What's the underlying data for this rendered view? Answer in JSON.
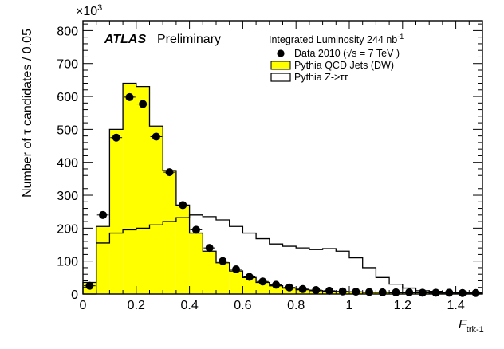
{
  "chart_data": {
    "type": "histogram",
    "title": "",
    "experiment_label": "ATLAS",
    "status_label": "Preliminary",
    "luminosity_label": "Integrated Luminosity 244 nb",
    "luminosity_superscript": "-1",
    "y_multiplier": "×10",
    "y_multiplier_exponent": "3",
    "xlabel": "F",
    "xlabel_subscript": "trk-1",
    "ylabel": "Number of τ candidates / 0.05",
    "xlim": [
      0,
      1.5
    ],
    "ylim": [
      0,
      830
    ],
    "x_ticks": [
      0,
      0.2,
      0.4,
      0.6,
      0.8,
      1,
      1.2,
      1.4
    ],
    "x_tick_labels": [
      "0",
      "0.2",
      "0.4",
      "0.6",
      "0.8",
      "1",
      "1.2",
      "1.4"
    ],
    "y_ticks": [
      0,
      100,
      200,
      300,
      400,
      500,
      600,
      700,
      800
    ],
    "y_tick_labels": [
      "0",
      "100",
      "200",
      "300",
      "400",
      "500",
      "600",
      "700",
      "800"
    ],
    "bin_edges": [
      0,
      0.05,
      0.1,
      0.15,
      0.2,
      0.25,
      0.3,
      0.35,
      0.4,
      0.45,
      0.5,
      0.55,
      0.6,
      0.65,
      0.7,
      0.75,
      0.8,
      0.85,
      0.9,
      0.95,
      1.0,
      1.05,
      1.1,
      1.15,
      1.2,
      1.25,
      1.3,
      1.35,
      1.4,
      1.45,
      1.5
    ],
    "series": [
      {
        "name": "Data 2010 (√s = 7 TeV )",
        "style": "markers",
        "color": "#000000",
        "values": [
          25,
          240,
          475,
          598,
          577,
          478,
          370,
          270,
          195,
          140,
          100,
          75,
          52,
          38,
          28,
          20,
          15,
          12,
          10,
          8,
          7,
          6,
          5,
          5,
          5,
          4,
          4,
          4,
          3,
          3
        ]
      },
      {
        "name": "Pythia QCD Jets (DW)",
        "style": "filled",
        "color": "#ffff00",
        "values": [
          35,
          205,
          500,
          640,
          630,
          510,
          375,
          270,
          185,
          130,
          95,
          70,
          50,
          35,
          25,
          18,
          13,
          10,
          8,
          7,
          6,
          5,
          5,
          4,
          4,
          4,
          3,
          3,
          3,
          3
        ]
      },
      {
        "name": "Pythia Z->ττ",
        "style": "outline",
        "color": "#000000",
        "values": [
          0,
          155,
          185,
          195,
          200,
          210,
          220,
          232,
          240,
          235,
          225,
          205,
          185,
          168,
          152,
          145,
          140,
          135,
          138,
          130,
          110,
          80,
          50,
          30,
          18,
          10,
          8,
          5,
          4,
          3
        ]
      }
    ],
    "legend_position": "top-right"
  }
}
